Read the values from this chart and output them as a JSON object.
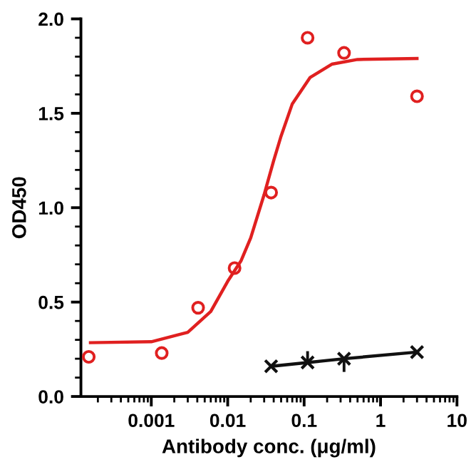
{
  "chart_data": {
    "type": "scatter",
    "xlabel": "Antibody conc. (μg/ml)",
    "ylabel": "OD450",
    "log": "x",
    "xlim": [
      0.00012,
      10
    ],
    "xticks": [
      0.001,
      0.01,
      0.1,
      1,
      10
    ],
    "ylim": [
      0,
      2
    ],
    "yticks": [
      {
        "value": 0,
        "label": "0.0"
      },
      {
        "value": 0.5,
        "label": "0.5"
      },
      {
        "value": 1,
        "label": "1.0"
      },
      {
        "value": 1.5,
        "label": "1.5"
      },
      {
        "value": 2,
        "label": "2.0"
      }
    ],
    "grid": false,
    "legend": false,
    "series": [
      {
        "color": "#e02020",
        "marker": "circle",
        "x": [
          0.000152,
          0.00137,
          0.0041,
          0.0123,
          0.037,
          0.111,
          0.333,
          3
        ],
        "values": [
          0.21,
          0.23,
          0.47,
          0.68,
          1.08,
          1.9,
          1.82,
          1.59
        ]
      },
      {
        "type": "line",
        "color": "#e02020",
        "marker": "none",
        "line_style": "solid",
        "x": [
          0.00016,
          0.001,
          0.003,
          0.006,
          0.01,
          0.015,
          0.02,
          0.03,
          0.04,
          0.05,
          0.07,
          0.12,
          0.23,
          0.5,
          3
        ],
        "values": [
          0.285,
          0.29,
          0.34,
          0.45,
          0.61,
          0.72,
          0.84,
          1.07,
          1.25,
          1.38,
          1.55,
          1.69,
          1.76,
          1.785,
          1.79
        ]
      },
      {
        "type": "line",
        "color": "#111111",
        "marker": "cross",
        "line_style": "solid",
        "x": [
          0.037,
          0.111,
          0.333,
          3
        ],
        "values": [
          0.16,
          0.18,
          0.2,
          0.235
        ],
        "errors": [
          null,
          [
            0.18,
            0.24
          ],
          [
            0.13,
            0.2
          ],
          null
        ]
      }
    ]
  }
}
